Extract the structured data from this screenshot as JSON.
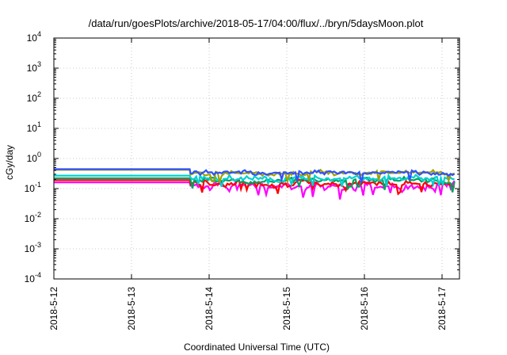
{
  "chart_data": {
    "type": "line",
    "title": "/data/run/goesPlots/archive/2018-05-17/04:00/flux/../bryn/5daysMoon.plot",
    "xlabel": "Coordinated Universal Time (UTC)",
    "ylabel": "cGy/day",
    "yscale": "log",
    "ylim": [
      0.0001,
      10000
    ],
    "xlim_days": [
      0,
      5.18
    ],
    "x_ticks": [
      {
        "day": 0,
        "label": "2018-5-12"
      },
      {
        "day": 1,
        "label": "2018-5-13"
      },
      {
        "day": 2,
        "label": "2018-5-14"
      },
      {
        "day": 3,
        "label": "2018-5-15"
      },
      {
        "day": 4,
        "label": "2018-5-16"
      },
      {
        "day": 5,
        "label": "2018-5-17"
      }
    ],
    "y_ticks": [
      {
        "value": 0.0001,
        "base": "10",
        "exp": "-4"
      },
      {
        "value": 0.001,
        "base": "10",
        "exp": "-3"
      },
      {
        "value": 0.01,
        "base": "10",
        "exp": "-2"
      },
      {
        "value": 0.1,
        "base": "10",
        "exp": "-1"
      },
      {
        "value": 1,
        "base": "10",
        "exp": "0"
      },
      {
        "value": 10,
        "base": "10",
        "exp": "1"
      },
      {
        "value": 100,
        "base": "10",
        "exp": "2"
      },
      {
        "value": 1000,
        "base": "10",
        "exp": "3"
      },
      {
        "value": 10000,
        "base": "10",
        "exp": "4"
      }
    ],
    "grid": true,
    "series": [
      {
        "color": "#ff00ff",
        "flat_level": 0.16,
        "noisy_level": 0.12,
        "noise": 0.35,
        "seed": 11
      },
      {
        "color": "#ff0000",
        "flat_level": 0.19,
        "noisy_level": 0.15,
        "noise": 0.25,
        "seed": 7
      },
      {
        "color": "#00a060",
        "flat_level": 0.22,
        "noisy_level": 0.18,
        "noise": 0.22,
        "seed": 5
      },
      {
        "color": "#00d0d0",
        "flat_level": 0.27,
        "noisy_level": 0.22,
        "noise": 0.22,
        "seed": 3
      },
      {
        "color": "#a0a000",
        "flat_level": 0.42,
        "noisy_level": 0.32,
        "noise": 0.18,
        "seed": 2
      },
      {
        "color": "#3050ff",
        "flat_level": 0.44,
        "noisy_level": 0.33,
        "noise": 0.18,
        "seed": 1
      }
    ],
    "flat_until_day": 1.75
  }
}
